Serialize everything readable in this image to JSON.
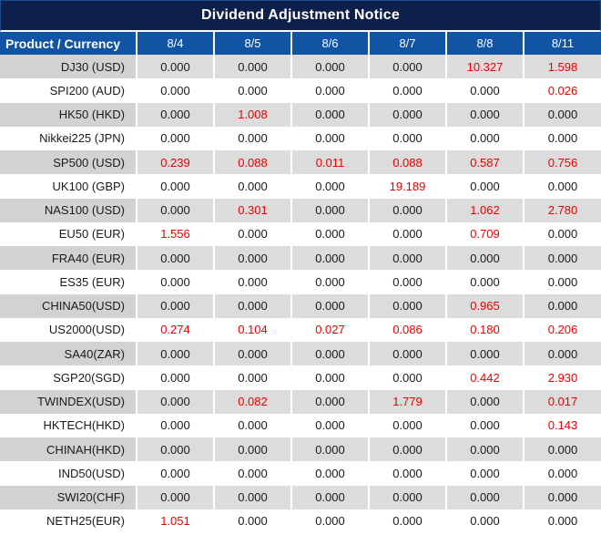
{
  "title": "Dividend Adjustment Notice",
  "colors": {
    "title_bar_bg": "#0e2049",
    "header_bg": "#1254a4",
    "header_text": "#ffffff",
    "row_alt_bg": "#dcdcdc",
    "row_alt_product_bg": "#d2d2d2",
    "row_bg": "#ffffff",
    "value_text": "#1a1a1a",
    "value_red": "#ee0000"
  },
  "table": {
    "header": {
      "product": "Product / Currency",
      "dates": [
        "8/4",
        "8/5",
        "8/6",
        "8/7",
        "8/8",
        "8/11"
      ]
    },
    "rows": [
      {
        "product": "DJ30 (USD)",
        "values": [
          "0.000",
          "0.000",
          "0.000",
          "0.000",
          "10.327",
          "1.598"
        ],
        "red": [
          false,
          false,
          false,
          false,
          true,
          true
        ]
      },
      {
        "product": "SPI200 (AUD)",
        "values": [
          "0.000",
          "0.000",
          "0.000",
          "0.000",
          "0.000",
          "0.026"
        ],
        "red": [
          false,
          false,
          false,
          false,
          false,
          true
        ]
      },
      {
        "product": "HK50 (HKD)",
        "values": [
          "0.000",
          "1.008",
          "0.000",
          "0.000",
          "0.000",
          "0.000"
        ],
        "red": [
          false,
          true,
          false,
          false,
          false,
          false
        ]
      },
      {
        "product": "Nikkei225 (JPN)",
        "values": [
          "0.000",
          "0.000",
          "0.000",
          "0.000",
          "0.000",
          "0.000"
        ],
        "red": [
          false,
          false,
          false,
          false,
          false,
          false
        ]
      },
      {
        "product": "SP500 (USD)",
        "values": [
          "0.239",
          "0.088",
          "0.011",
          "0.088",
          "0.587",
          "0.756"
        ],
        "red": [
          true,
          true,
          true,
          true,
          true,
          true
        ]
      },
      {
        "product": "UK100 (GBP)",
        "values": [
          "0.000",
          "0.000",
          "0.000",
          "19.189",
          "0.000",
          "0.000"
        ],
        "red": [
          false,
          false,
          false,
          true,
          false,
          false
        ]
      },
      {
        "product": "NAS100 (USD)",
        "values": [
          "0.000",
          "0.301",
          "0.000",
          "0.000",
          "1.062",
          "2.780"
        ],
        "red": [
          false,
          true,
          false,
          false,
          true,
          true
        ]
      },
      {
        "product": "EU50 (EUR)",
        "values": [
          "1.556",
          "0.000",
          "0.000",
          "0.000",
          "0.709",
          "0.000"
        ],
        "red": [
          true,
          false,
          false,
          false,
          true,
          false
        ]
      },
      {
        "product": "FRA40 (EUR)",
        "values": [
          "0.000",
          "0.000",
          "0.000",
          "0.000",
          "0.000",
          "0.000"
        ],
        "red": [
          false,
          false,
          false,
          false,
          false,
          false
        ]
      },
      {
        "product": "ES35 (EUR)",
        "values": [
          "0.000",
          "0.000",
          "0.000",
          "0.000",
          "0.000",
          "0.000"
        ],
        "red": [
          false,
          false,
          false,
          false,
          false,
          false
        ]
      },
      {
        "product": "CHINA50(USD)",
        "values": [
          "0.000",
          "0.000",
          "0.000",
          "0.000",
          "0.965",
          "0.000"
        ],
        "red": [
          false,
          false,
          false,
          false,
          true,
          false
        ]
      },
      {
        "product": "US2000(USD)",
        "values": [
          "0.274",
          "0.104",
          "0.027",
          "0.086",
          "0.180",
          "0.206"
        ],
        "red": [
          true,
          true,
          true,
          true,
          true,
          true
        ]
      },
      {
        "product": "SA40(ZAR)",
        "values": [
          "0.000",
          "0.000",
          "0.000",
          "0.000",
          "0.000",
          "0.000"
        ],
        "red": [
          false,
          false,
          false,
          false,
          false,
          false
        ]
      },
      {
        "product": "SGP20(SGD)",
        "values": [
          "0.000",
          "0.000",
          "0.000",
          "0.000",
          "0.442",
          "2.930"
        ],
        "red": [
          false,
          false,
          false,
          false,
          true,
          true
        ]
      },
      {
        "product": "TWINDEX(USD)",
        "values": [
          "0.000",
          "0.082",
          "0.000",
          "1.779",
          "0.000",
          "0.017"
        ],
        "red": [
          false,
          true,
          false,
          true,
          false,
          true
        ]
      },
      {
        "product": "HKTECH(HKD)",
        "values": [
          "0.000",
          "0.000",
          "0.000",
          "0.000",
          "0.000",
          "0.143"
        ],
        "red": [
          false,
          false,
          false,
          false,
          false,
          true
        ]
      },
      {
        "product": "CHINAH(HKD)",
        "values": [
          "0.000",
          "0.000",
          "0.000",
          "0.000",
          "0.000",
          "0.000"
        ],
        "red": [
          false,
          false,
          false,
          false,
          false,
          false
        ]
      },
      {
        "product": "IND50(USD)",
        "values": [
          "0.000",
          "0.000",
          "0.000",
          "0.000",
          "0.000",
          "0.000"
        ],
        "red": [
          false,
          false,
          false,
          false,
          false,
          false
        ]
      },
      {
        "product": "SWI20(CHF)",
        "values": [
          "0.000",
          "0.000",
          "0.000",
          "0.000",
          "0.000",
          "0.000"
        ],
        "red": [
          false,
          false,
          false,
          false,
          false,
          false
        ]
      },
      {
        "product": "NETH25(EUR)",
        "values": [
          "1.051",
          "0.000",
          "0.000",
          "0.000",
          "0.000",
          "0.000"
        ],
        "red": [
          true,
          false,
          false,
          false,
          false,
          false
        ]
      }
    ]
  }
}
